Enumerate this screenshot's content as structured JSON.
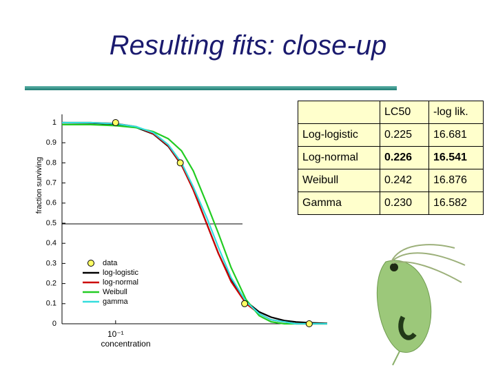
{
  "title": "Resulting fits: close-up",
  "chart_data": {
    "type": "line",
    "xlabel": "concentration",
    "ylabel": "fraction surviving",
    "xscale": "log",
    "xlim": [
      0.062,
      0.66
    ],
    "xticks": [
      {
        "value": 0.1,
        "label": "10⁻¹"
      }
    ],
    "ylim": [
      0,
      1
    ],
    "yticks": [
      0,
      0.1,
      0.2,
      0.3,
      0.4,
      0.5,
      0.6,
      0.7,
      0.8,
      0.9,
      1
    ],
    "x": [
      0.062,
      0.08,
      0.1,
      0.12,
      0.14,
      0.16,
      0.18,
      0.2,
      0.225,
      0.25,
      0.28,
      0.32,
      0.36,
      0.4,
      0.45,
      0.5,
      0.56,
      0.66
    ],
    "series": [
      {
        "name": "data",
        "color": "#ffff66",
        "marker": true,
        "x": [
          0.1,
          0.178,
          0.316,
          0.562
        ],
        "values": [
          1.0,
          0.8,
          0.1,
          0.0
        ]
      },
      {
        "name": "log-logistic",
        "color": "#000000",
        "values": [
          1.0,
          0.998,
          0.992,
          0.976,
          0.943,
          0.882,
          0.789,
          0.667,
          0.5,
          0.35,
          0.216,
          0.111,
          0.059,
          0.033,
          0.016,
          0.009,
          0.005,
          0.002
        ]
      },
      {
        "name": "log-normal",
        "color": "#cc0000",
        "values": [
          1.0,
          1.0,
          0.996,
          0.98,
          0.945,
          0.885,
          0.79,
          0.665,
          0.5,
          0.35,
          0.21,
          0.1,
          0.05,
          0.02,
          0.01,
          0,
          0,
          0
        ]
      },
      {
        "name": "Weibull",
        "color": "#22cc22",
        "values": [
          0.99,
          0.99,
          0.985,
          0.975,
          0.955,
          0.92,
          0.86,
          0.76,
          0.6,
          0.45,
          0.28,
          0.12,
          0.04,
          0.01,
          0,
          0,
          0,
          0
        ]
      },
      {
        "name": "gamma",
        "color": "#33dddd",
        "values": [
          1.0,
          1.0,
          0.995,
          0.98,
          0.95,
          0.89,
          0.8,
          0.68,
          0.53,
          0.38,
          0.23,
          0.11,
          0.05,
          0.02,
          0.01,
          0,
          0,
          0
        ]
      }
    ]
  },
  "table": {
    "columns": [
      "LC50",
      "-log lik."
    ],
    "rows": [
      [
        "Log-logistic",
        "0.225",
        "16.681"
      ],
      [
        "Log-normal",
        "0.226",
        "16.541"
      ],
      [
        "Weibull",
        "0.242",
        "16.876"
      ],
      [
        "Gamma",
        "0.230",
        "16.582"
      ]
    ]
  }
}
